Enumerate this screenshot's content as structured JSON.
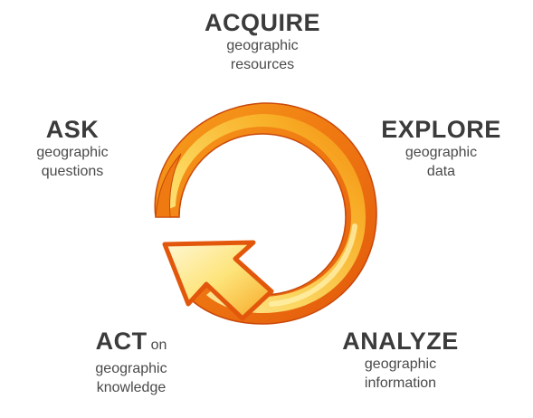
{
  "steps": {
    "acquire": {
      "title": "ACQUIRE",
      "desc1": "geographic",
      "desc2": "resources"
    },
    "ask": {
      "title": "ASK",
      "desc1": "geographic",
      "desc2": "questions"
    },
    "explore": {
      "title": "EXPLORE",
      "desc1": "geographic",
      "desc2": "data"
    },
    "act": {
      "title": "ACT",
      "suffix": "on",
      "desc1": "geographic",
      "desc2": "knowledge"
    },
    "analyze": {
      "title": "ANALYZE",
      "desc1": "geographic",
      "desc2": "information"
    }
  },
  "colors": {
    "arrow_outer": "#e8610e",
    "arrow_mid": "#f59a18",
    "arrow_inner": "#fbd43a",
    "arrow_highlight": "#fff3b0",
    "text": "#3b3b3b"
  },
  "icons": {
    "cycle": "circular-arrow-icon"
  }
}
